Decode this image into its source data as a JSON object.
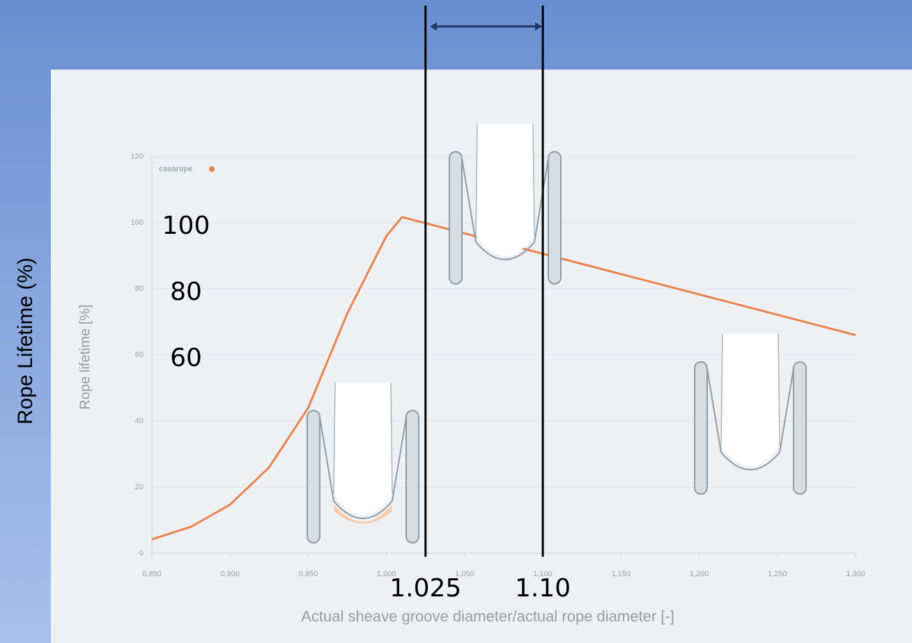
{
  "chart_data": {
    "type": "line",
    "page_y_label": "Rope Lifetime (%)",
    "y_label": "Rope lifetime [%]",
    "x_label": "Actual sheave groove diameter/actual rope diameter [-]",
    "logo": "casarope",
    "x": [
      0.85,
      0.875,
      0.9,
      0.925,
      0.95,
      0.975,
      1.0,
      1.01,
      1.1,
      1.2,
      1.3
    ],
    "series": [
      {
        "color": "#e8834e",
        "values": [
          4.2,
          8,
          14.7,
          26,
          44,
          72.6,
          96,
          101.7,
          90.6,
          78.3,
          66.0
        ]
      }
    ],
    "xlim": [
      0.85,
      1.3
    ],
    "xticks": [
      {
        "value": 0.85,
        "label": "0,850"
      },
      {
        "value": 0.9,
        "label": "0,900"
      },
      {
        "value": 0.95,
        "label": "0,950"
      },
      {
        "value": 1.0,
        "label": "1,000"
      },
      {
        "value": 1.05,
        "label": "1,050"
      },
      {
        "value": 1.1,
        "label": "1,100"
      },
      {
        "value": 1.15,
        "label": "1,150"
      },
      {
        "value": 1.2,
        "label": "1,200"
      },
      {
        "value": 1.25,
        "label": "1,250"
      },
      {
        "value": 1.3,
        "label": "1,300"
      }
    ],
    "ylim": [
      0,
      120
    ],
    "yticks": [
      0,
      20,
      40,
      60,
      80,
      100,
      120
    ],
    "grid": true,
    "overlay_yticks": [
      100,
      80,
      60
    ],
    "markers": [
      {
        "value": 1.025,
        "label": "1.025"
      },
      {
        "value": 1.1,
        "label": "1.10"
      }
    ]
  }
}
